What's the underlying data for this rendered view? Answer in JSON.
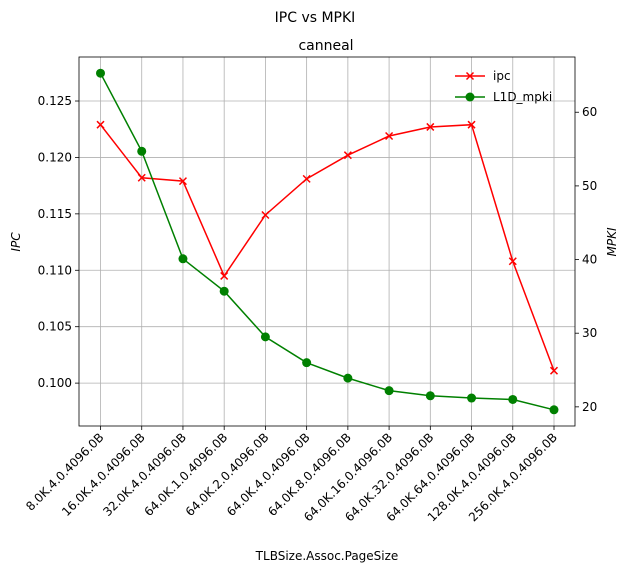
{
  "chart_data": {
    "type": "line",
    "suptitle": "IPC vs MPKI",
    "title": "canneal",
    "xlabel": "TLBSize.Assoc.PageSize",
    "ylabel_left": "IPC",
    "ylabel_right": "MPKI",
    "categories": [
      "8.0K.4.0.4096.0B",
      "16.0K.4.0.4096.0B",
      "32.0K.4.0.4096.0B",
      "64.0K.1.0.4096.0B",
      "64.0K.2.0.4096.0B",
      "64.0K.4.0.4096.0B",
      "64.0K.8.0.4096.0B",
      "64.0K.16.0.4096.0B",
      "64.0K.32.0.4096.0B",
      "64.0K.64.0.4096.0B",
      "128.0K.4.0.4096.0B",
      "256.0K.4.0.4096.0B"
    ],
    "series": [
      {
        "name": "ipc",
        "axis": "left",
        "color": "#ff0000",
        "marker": "x",
        "values": [
          0.1229,
          0.1182,
          0.1179,
          0.1095,
          0.1149,
          0.1181,
          0.1202,
          0.1219,
          0.1227,
          0.1229,
          0.1108,
          0.1011
        ]
      },
      {
        "name": "L1D_mpki",
        "axis": "right",
        "color": "#008000",
        "marker": "o",
        "values": [
          65.3,
          54.7,
          40.1,
          35.7,
          29.5,
          26.0,
          23.9,
          22.2,
          21.5,
          21.2,
          21.0,
          19.6
        ]
      }
    ],
    "ylim_left": [
      0.0962,
      0.1289
    ],
    "yticks_left": [
      "0.100",
      "0.105",
      "0.110",
      "0.115",
      "0.120",
      "0.125"
    ],
    "ylim_right": [
      17.4,
      67.5
    ],
    "yticks_right": [
      "20",
      "30",
      "40",
      "50",
      "60"
    ],
    "grid": true,
    "legend_position": "upper right"
  }
}
